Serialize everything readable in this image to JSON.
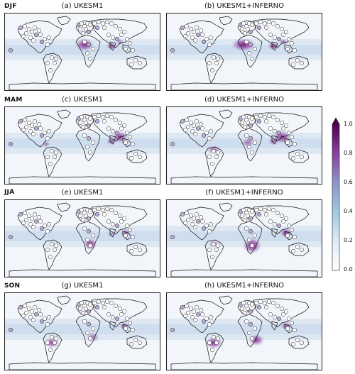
{
  "seasons": [
    "DJF",
    "MAM",
    "JJA",
    "SON"
  ],
  "panels": [
    {
      "title": "(a) UKESM1"
    },
    {
      "title": "(b) UKESM1+INFERNO"
    },
    {
      "title": "(c) UKESM1"
    },
    {
      "title": "(d) UKESM1+INFERNO"
    },
    {
      "title": "(e) UKESM1"
    },
    {
      "title": "(f) UKESM1+INFERNO"
    },
    {
      "title": "(g) UKESM1"
    },
    {
      "title": "(h) UKESM1+INFERNO"
    }
  ],
  "colorbar": {
    "ticks": [
      "1.0",
      "0.8",
      "0.6",
      "0.4",
      "0.2",
      "0.0"
    ],
    "colors": [
      "#ffffff",
      "#deebf7",
      "#9ecae1",
      "#8c96c6",
      "#88419d",
      "#4d004b"
    ]
  }
}
